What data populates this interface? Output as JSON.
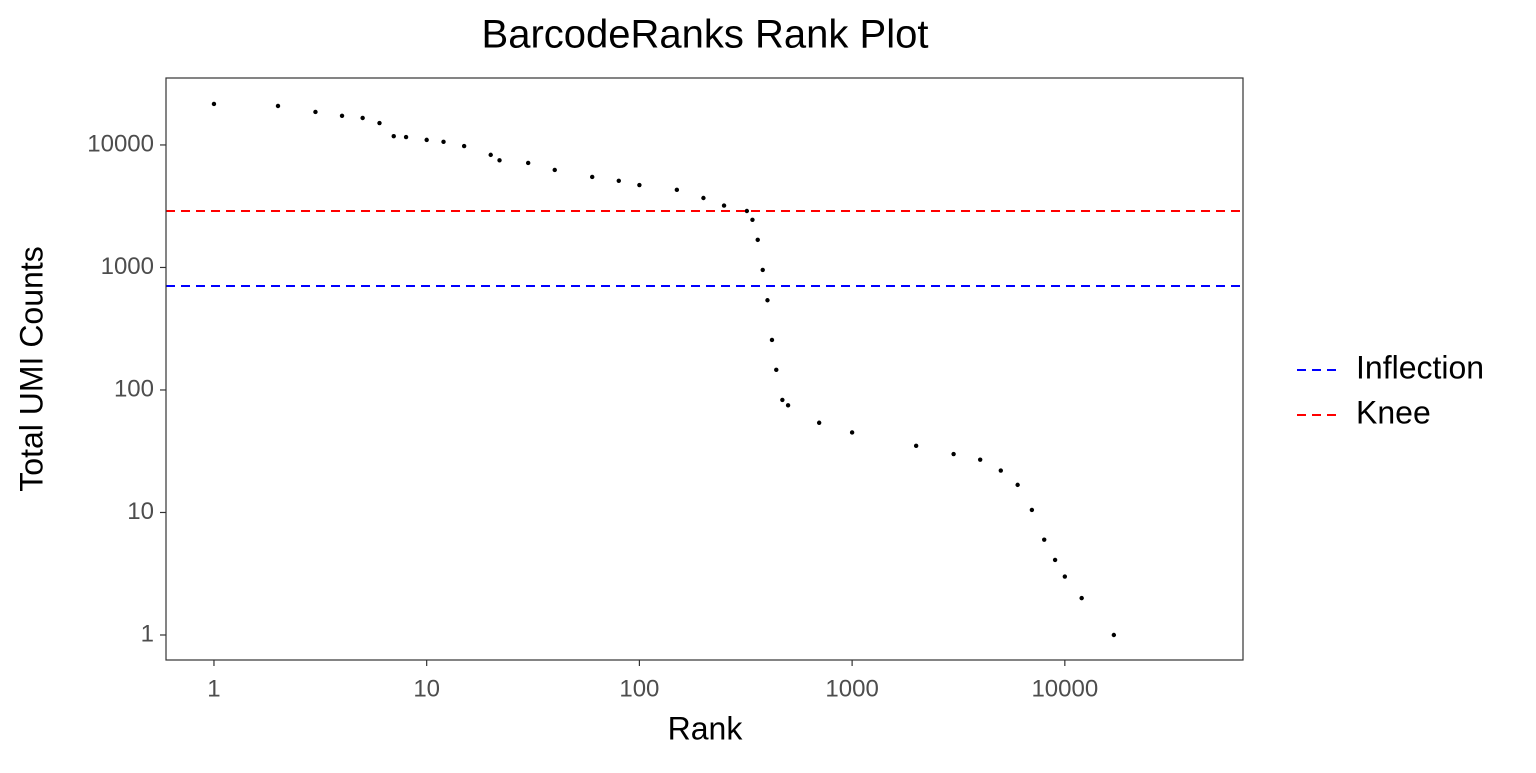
{
  "chart_data": {
    "type": "scatter",
    "title": "BarcodeRanks Rank Plot",
    "x_label": "Rank",
    "y_label": "Total UMI Counts",
    "log_x": true,
    "log_y": true,
    "grid": false,
    "color": "#000000",
    "x": [
      1,
      2,
      3,
      4,
      5,
      6,
      7,
      8,
      10,
      12,
      15,
      20,
      22,
      30,
      40,
      60,
      80,
      100,
      150,
      200,
      250,
      320,
      340,
      360,
      380,
      400,
      420,
      440,
      470,
      500,
      700,
      1000,
      2000,
      3000,
      4000,
      5000,
      6000,
      7000,
      8000,
      9000,
      10000,
      12000,
      17000
    ],
    "values": [
      21600,
      20800,
      18600,
      17300,
      16600,
      15100,
      11800,
      11600,
      11000,
      10600,
      9800,
      8300,
      7500,
      7130,
      6250,
      5480,
      5100,
      4710,
      4300,
      3690,
      3200,
      2890,
      2450,
      1680,
      955,
      540,
      256,
      146,
      83,
      75,
      54,
      45,
      35,
      30,
      27,
      22,
      16.8,
      10.5,
      6,
      4.1,
      3,
      2,
      1
    ],
    "reference_lines": [
      {
        "name": "Inflection",
        "value": 706,
        "color": "#0000ff"
      },
      {
        "name": "Knee",
        "value": 2890,
        "color": "#ff0000"
      }
    ],
    "xlim": [
      0.595,
      68800
    ],
    "ylim": [
      0.625,
      35200
    ],
    "xticks": [
      1,
      10,
      100,
      1000,
      10000
    ],
    "yticks": [
      1,
      10,
      100,
      1000,
      10000
    ],
    "legend_position": "right"
  }
}
